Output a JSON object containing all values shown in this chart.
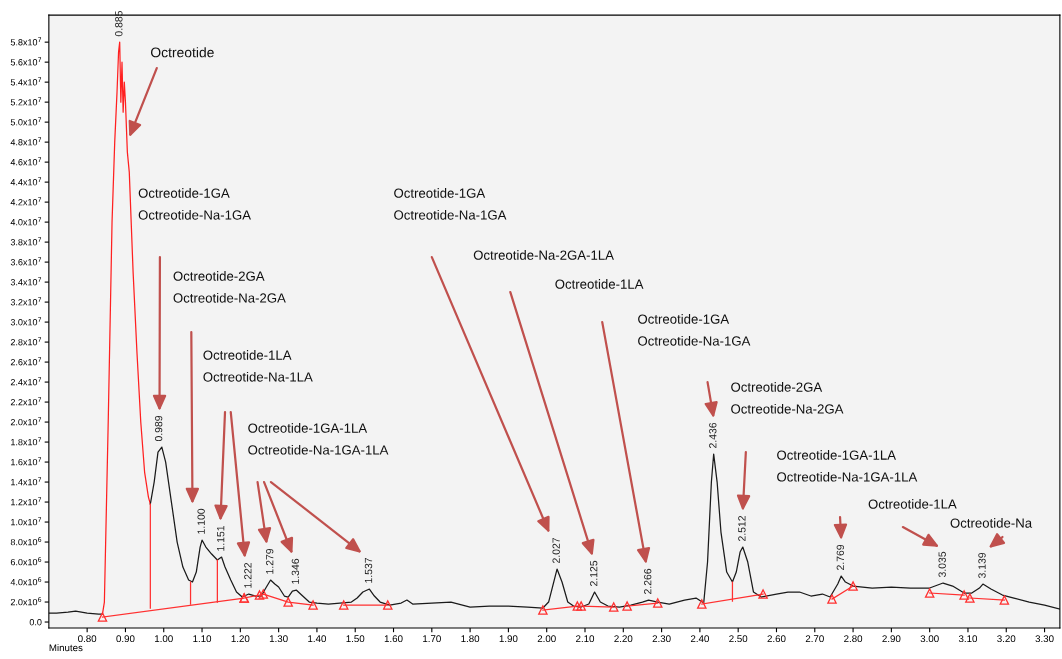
{
  "chart_data": {
    "type": "line",
    "xlabel": "Minutes",
    "xlim": [
      0.7,
      3.34
    ],
    "ylim": [
      -600000,
      60700000
    ],
    "xticks": [
      {
        "value": 0.8,
        "label": "0.80"
      },
      {
        "value": 0.9,
        "label": "0.90"
      },
      {
        "value": 1.0,
        "label": "1.00"
      },
      {
        "value": 1.1,
        "label": "1.10"
      },
      {
        "value": 1.2,
        "label": "1.20"
      },
      {
        "value": 1.3,
        "label": "1.30"
      },
      {
        "value": 1.4,
        "label": "1.40"
      },
      {
        "value": 1.5,
        "label": "1.50"
      },
      {
        "value": 1.6,
        "label": "1.60"
      },
      {
        "value": 1.7,
        "label": "1.70"
      },
      {
        "value": 1.8,
        "label": "1.80"
      },
      {
        "value": 1.9,
        "label": "1.90"
      },
      {
        "value": 2.0,
        "label": "2.00"
      },
      {
        "value": 2.1,
        "label": "2.10"
      },
      {
        "value": 2.2,
        "label": "2.20"
      },
      {
        "value": 2.3,
        "label": "2.30"
      },
      {
        "value": 2.4,
        "label": "2.40"
      },
      {
        "value": 2.5,
        "label": "2.50"
      },
      {
        "value": 2.6,
        "label": "2.60"
      },
      {
        "value": 2.7,
        "label": "2.70"
      },
      {
        "value": 2.8,
        "label": "2.80"
      },
      {
        "value": 2.9,
        "label": "2.90"
      },
      {
        "value": 3.0,
        "label": "3.00"
      },
      {
        "value": 3.1,
        "label": "3.10"
      },
      {
        "value": 3.2,
        "label": "3.20"
      },
      {
        "value": 3.3,
        "label": "3.30"
      }
    ],
    "yticks": [
      {
        "value": 0,
        "label": "0.0"
      },
      {
        "value": 2000000,
        "label": "2.0x10$^{6}$"
      },
      {
        "value": 4000000,
        "label": "4.0x10$^{6}$"
      },
      {
        "value": 6000000,
        "label": "6.0x10$^{6}$"
      },
      {
        "value": 8000000,
        "label": "8.0x10$^{6}$"
      },
      {
        "value": 10000000,
        "label": "1.0x10$^{7}$"
      },
      {
        "value": 12000000,
        "label": "1.2x10$^{7}$"
      },
      {
        "value": 14000000,
        "label": "1.4x10$^{7}$"
      },
      {
        "value": 16000000,
        "label": "1.6x10$^{7}$"
      },
      {
        "value": 18000000,
        "label": "1.8x10$^{7}$"
      },
      {
        "value": 20000000,
        "label": "2.0x10$^{7}$"
      },
      {
        "value": 22000000,
        "label": "2.2x10$^{7}$"
      },
      {
        "value": 24000000,
        "label": "2.4x10$^{7}$"
      },
      {
        "value": 26000000,
        "label": "2.6x10$^{7}$"
      },
      {
        "value": 28000000,
        "label": "2.8x10$^{7}$"
      },
      {
        "value": 30000000,
        "label": "3.0x10$^{7}$"
      },
      {
        "value": 32000000,
        "label": "3.2x10$^{7}$"
      },
      {
        "value": 34000000,
        "label": "3.4x10$^{7}$"
      },
      {
        "value": 36000000,
        "label": "3.6x10$^{7}$"
      },
      {
        "value": 38000000,
        "label": "3.8x10$^{7}$"
      },
      {
        "value": 40000000,
        "label": "4.0x10$^{7}$"
      },
      {
        "value": 42000000,
        "label": "4.2x10$^{7}$"
      },
      {
        "value": 44000000,
        "label": "4.4x10$^{7}$"
      },
      {
        "value": 46000000,
        "label": "4.6x10$^{7}$"
      },
      {
        "value": 48000000,
        "label": "4.8x10$^{7}$"
      },
      {
        "value": 50000000,
        "label": "5.0x10$^{7}$"
      },
      {
        "value": 52000000,
        "label": "5.2x10$^{7}$"
      },
      {
        "value": 54000000,
        "label": "5.4x10$^{7}$"
      },
      {
        "value": 56000000,
        "label": "5.6x10$^{7}$"
      },
      {
        "value": 58000000,
        "label": "5.8x10$^{7}$"
      }
    ],
    "grid": false,
    "legend": false,
    "marker": "none",
    "line_style": "solid",
    "series": [
      {
        "color": "#1a1a1a",
        "x": [
          0.7,
          0.72,
          0.75,
          0.77,
          0.8,
          0.83,
          0.84
        ],
        "values": [
          900000,
          900000,
          1000000,
          1100000,
          900000,
          800000,
          800000
        ]
      },
      {
        "color": "#ff2020",
        "x": [
          0.84,
          0.845,
          0.855,
          0.865,
          0.872,
          0.878,
          0.882,
          0.885,
          0.888,
          0.891,
          0.894,
          0.897,
          0.9,
          0.905,
          0.91,
          0.92,
          0.93,
          0.94,
          0.95,
          0.96,
          0.965
        ],
        "values": [
          800000,
          2000000,
          20000000,
          40000000,
          48000000,
          53000000,
          57000000,
          58000000,
          52000000,
          56000000,
          51000000,
          54000000,
          52000000,
          47000000,
          45000000,
          35000000,
          27000000,
          20000000,
          15000000,
          12500000,
          11800000
        ]
      },
      {
        "color": "#1a1a1a",
        "x": [
          0.965,
          0.975,
          0.985,
          0.995,
          1.005,
          1.02,
          1.035,
          1.05,
          1.065,
          1.075,
          1.085,
          1.095,
          1.1,
          1.11,
          1.125,
          1.14,
          1.151,
          1.16,
          1.175,
          1.19,
          1.205,
          1.222,
          1.24,
          1.255,
          1.265,
          1.279,
          1.29,
          1.3,
          1.315,
          1.325,
          1.336,
          1.346,
          1.36,
          1.38,
          1.4,
          1.43,
          1.46,
          1.49,
          1.505,
          1.52,
          1.537,
          1.55,
          1.565,
          1.59,
          1.62,
          1.635,
          1.65,
          1.7,
          1.75,
          1.8,
          1.85,
          1.9,
          1.95,
          1.99,
          2.005,
          2.015,
          2.027,
          2.04,
          2.055,
          2.07,
          2.09,
          2.11,
          2.125,
          2.14,
          2.16,
          2.19,
          2.22,
          2.25,
          2.266,
          2.29,
          2.32,
          2.36,
          2.39,
          2.41,
          2.42,
          2.43,
          2.436,
          2.445,
          2.455,
          2.47,
          2.485,
          2.495,
          2.505,
          2.512,
          2.525,
          2.54,
          2.56,
          2.6,
          2.63,
          2.66,
          2.69,
          2.72,
          2.74,
          2.76,
          2.769,
          2.78,
          2.8,
          2.85,
          2.9,
          2.95,
          3.0,
          3.035,
          3.06,
          3.09,
          3.11,
          3.13,
          3.139,
          3.16,
          3.19,
          3.22,
          3.26,
          3.3,
          3.34
        ],
        "values": [
          11800000,
          14000000,
          17000000,
          17500000,
          16000000,
          12000000,
          8000000,
          5500000,
          4200000,
          4000000,
          5000000,
          7500000,
          8200000,
          7500000,
          6800000,
          6200000,
          6500000,
          5500000,
          4200000,
          3000000,
          2500000,
          2800000,
          2600000,
          2600000,
          3300000,
          4200000,
          3800000,
          3500000,
          2600000,
          2500000,
          3100000,
          3200000,
          2700000,
          2000000,
          1900000,
          1800000,
          1900000,
          2000000,
          2400000,
          3000000,
          3300000,
          2600000,
          2000000,
          1700000,
          1900000,
          2200000,
          1800000,
          1900000,
          2000000,
          1500000,
          1600000,
          1600000,
          1500000,
          1400000,
          2000000,
          3500000,
          5300000,
          4000000,
          2000000,
          1600000,
          1500000,
          1800000,
          3000000,
          2000000,
          1600000,
          1500000,
          1700000,
          2000000,
          2200000,
          2000000,
          1800000,
          2200000,
          2400000,
          1900000,
          6000000,
          14000000,
          16800000,
          14000000,
          9000000,
          5000000,
          4000000,
          5000000,
          7000000,
          7500000,
          6000000,
          3000000,
          2500000,
          2800000,
          3000000,
          3000000,
          2600000,
          2800000,
          2500000,
          3800000,
          4600000,
          4000000,
          3600000,
          3400000,
          3500000,
          3400000,
          3400000,
          3900000,
          3600000,
          2900000,
          2900000,
          3400000,
          3800000,
          3300000,
          2700000,
          2400000,
          2000000,
          1700000,
          1300000
        ]
      },
      {
        "color": "#ff3030",
        "marker": "triangle",
        "x": [
          0.84,
          1.21,
          null,
          1.21,
          1.25,
          1.26,
          1.325,
          1.39,
          null,
          1.47,
          1.585,
          null,
          1.99,
          2.08,
          2.09,
          2.175,
          null,
          2.21,
          2.29,
          null,
          2.405,
          2.565,
          null,
          2.745,
          2.8,
          null,
          3.0,
          3.09,
          null,
          3.105,
          3.195
        ],
        "values": [
          500000,
          2400000,
          null,
          2400000,
          2700000,
          2800000,
          2000000,
          1700000,
          null,
          1700000,
          1700000,
          null,
          1200000,
          1600000,
          1600000,
          1500000,
          null,
          1600000,
          1900000,
          null,
          1800000,
          2800000,
          null,
          2300000,
          3600000,
          null,
          2900000,
          2700000,
          null,
          2400000,
          2200000
        ]
      },
      {
        "color": "#ff3030",
        "x": [
          0.965,
          0.965,
          null,
          1.07,
          1.07,
          null,
          1.14,
          1.14,
          null,
          2.485,
          2.485
        ],
        "values": [
          1400000,
          11800000,
          null,
          1800000,
          4000000,
          null,
          2000000,
          6200000,
          null,
          2100000,
          4000000
        ]
      }
    ],
    "annotations": [
      {
        "text": "Octreotide",
        "x": 0.91,
        "y": 48500000
      },
      "Octreotide-1GA\nOctreotide-Na-1GA",
      "Octreotide-2GA\nOctreotide-Na-2GA",
      "Octreotide-1LA\nOctreotide-Na-1LA",
      "Octreotide-1GA-1LA\nOctreotide-Na-1GA-1LA",
      "Octreotide-1GA\nOctreotide-Na-1GA",
      "Octreotide-Na-2GA-1LA",
      "Octreotide-1LA",
      "Octreotide-1GA\nOctreotide-Na-1GA",
      "Octreotide-2GA\nOctreotide-Na-2GA",
      "Octreotide-1GA-1LA\nOctreotide-Na-1GA-1LA",
      "Octreotide-1LA",
      "Octreotide-Na",
      {
        "text": "0.885",
        "x": 0.885,
        "y": 58000000
      },
      {
        "text": "0.989",
        "x": 0.989,
        "y": 17500000
      },
      {
        "text": "1.100",
        "x": 1.1,
        "y": 8200000
      },
      {
        "text": "1.151",
        "x": 1.151,
        "y": 6500000
      },
      {
        "text": "1.222",
        "x": 1.222,
        "y": 2800000
      },
      {
        "text": "1.279",
        "x": 1.279,
        "y": 4200000
      },
      {
        "text": "1.346",
        "x": 1.346,
        "y": 3200000
      },
      {
        "text": "1.537",
        "x": 1.537,
        "y": 3300000
      },
      {
        "text": "2.027",
        "x": 2.027,
        "y": 5300000
      },
      {
        "text": "2.125",
        "x": 2.125,
        "y": 3000000
      },
      {
        "text": "2.266",
        "x": 2.266,
        "y": 2200000
      },
      {
        "text": "2.436",
        "x": 2.436,
        "y": 16800000
      },
      {
        "text": "2.512",
        "x": 2.512,
        "y": 7500000
      },
      {
        "text": "2.769",
        "x": 2.769,
        "y": 4600000
      },
      {
        "text": "3.035",
        "x": 3.035,
        "y": 3900000
      },
      {
        "text": "3.139",
        "x": 3.139,
        "y": 3800000
      }
    ]
  }
}
